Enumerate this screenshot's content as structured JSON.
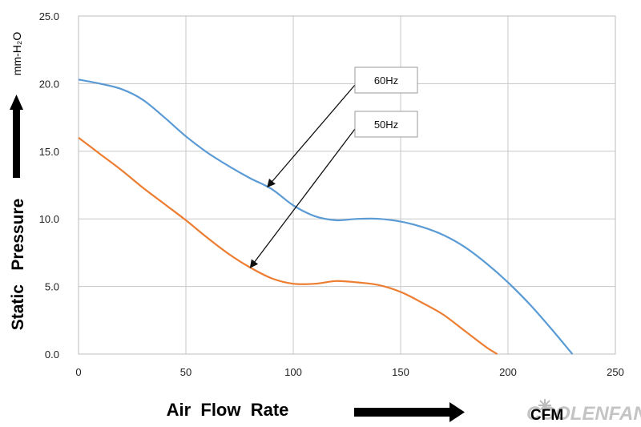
{
  "chart_data": {
    "type": "line",
    "xlabel": "Air  Flow  Rate",
    "xunit": "CFM",
    "ylabel": "Static   Pressure",
    "yunit": "mm-H₂O",
    "xlim": [
      0,
      250
    ],
    "ylim": [
      0,
      25
    ],
    "xticks": [
      0,
      50,
      100,
      150,
      200,
      250
    ],
    "yticks": [
      "0.0",
      "5.0",
      "10.0",
      "15.0",
      "20.0",
      "25.0"
    ],
    "grid": true,
    "series": [
      {
        "name": "60Hz",
        "color": "#5B9BD5",
        "x": [
          0,
          10,
          20,
          30,
          40,
          50,
          60,
          70,
          80,
          90,
          100,
          110,
          120,
          130,
          140,
          150,
          160,
          170,
          180,
          190,
          200,
          210,
          220,
          230
        ],
        "y": [
          20.3,
          20.0,
          19.6,
          18.8,
          17.5,
          16.1,
          14.9,
          13.9,
          13.0,
          12.2,
          11.0,
          10.2,
          9.9,
          10.0,
          10.0,
          9.8,
          9.4,
          8.8,
          7.9,
          6.7,
          5.3,
          3.7,
          1.9,
          0.0
        ]
      },
      {
        "name": "50Hz",
        "color": "#ED7D31",
        "x": [
          0,
          10,
          20,
          30,
          40,
          50,
          60,
          70,
          80,
          90,
          100,
          110,
          120,
          130,
          140,
          150,
          160,
          170,
          180,
          190,
          195
        ],
        "y": [
          16.0,
          14.8,
          13.6,
          12.3,
          11.1,
          9.9,
          8.6,
          7.4,
          6.4,
          5.6,
          5.2,
          5.2,
          5.4,
          5.3,
          5.1,
          4.6,
          3.8,
          2.9,
          1.7,
          0.5,
          0.0
        ]
      }
    ],
    "annotations": [
      {
        "text": "60Hz",
        "target_series": 0,
        "target_x": 88
      },
      {
        "text": "50Hz",
        "target_series": 1,
        "target_x": 80
      }
    ]
  },
  "watermark": "COOLENFAN"
}
